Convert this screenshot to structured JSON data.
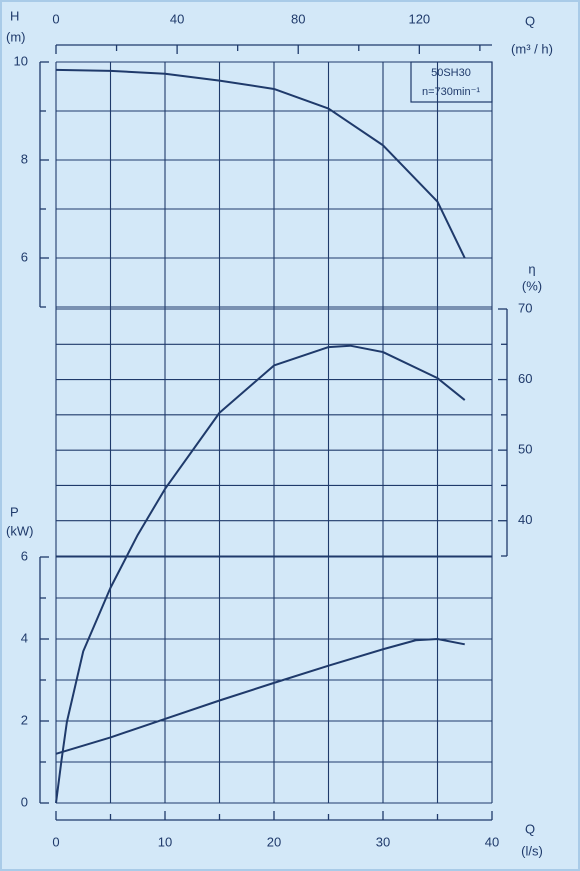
{
  "chart_data": {
    "type": "line",
    "annotations": [
      "50SH30",
      "n=730min⁻¹"
    ],
    "xlabel": "Q",
    "xunit": "(l/s)",
    "xlim": [
      0,
      40
    ],
    "xticks": [
      0,
      10,
      20,
      30,
      40
    ],
    "xminor": [
      5,
      15,
      25,
      35
    ],
    "x2label": "Q",
    "x2unit": "(m³ / h)",
    "x2lim": [
      0,
      144
    ],
    "x2ticks": [
      0,
      40,
      80,
      120
    ],
    "x2minor": [
      20,
      60,
      100,
      140
    ],
    "ylabel": "H",
    "yunit": "(m)",
    "ylim": [
      5,
      10
    ],
    "yticks": [
      6,
      8,
      10
    ],
    "yminor": [
      5,
      7,
      9
    ],
    "y2label": "η",
    "y2unit": "(%)",
    "y2lim": [
      0,
      70
    ],
    "y2ticks": [
      40,
      50,
      60,
      70
    ],
    "y2minor": [
      35,
      45,
      55,
      65
    ],
    "y3label": "P",
    "y3unit": "(kW)",
    "y3lim": [
      0,
      6
    ],
    "y3ticks": [
      0,
      2,
      4,
      6
    ],
    "y3minor": [
      1,
      3,
      5
    ],
    "grid": true,
    "series": [
      {
        "axis": "y",
        "color": "#1f3a6b",
        "x": [
          0,
          5,
          10,
          15,
          20,
          25,
          30,
          35,
          37.5
        ],
        "values": [
          9.84,
          9.82,
          9.76,
          9.62,
          9.45,
          9.05,
          8.3,
          7.15,
          6.0
        ]
      },
      {
        "axis": "y2",
        "color": "#1f3a6b",
        "x": [
          0,
          0.5,
          1,
          2.5,
          5,
          7.5,
          10,
          15,
          20,
          25,
          27,
          30,
          35,
          37.5
        ],
        "values": [
          0,
          6,
          11.5,
          21.5,
          30.5,
          38,
          44.5,
          55.3,
          62,
          64.6,
          64.8,
          63.9,
          60.2,
          57.1
        ]
      },
      {
        "axis": "y3",
        "color": "#1f3a6b",
        "x": [
          0,
          5,
          10,
          15,
          20,
          25,
          30,
          33,
          35,
          37.5
        ],
        "values": [
          1.2,
          1.6,
          2.05,
          2.5,
          2.93,
          3.35,
          3.75,
          3.97,
          4.0,
          3.87
        ]
      }
    ]
  }
}
